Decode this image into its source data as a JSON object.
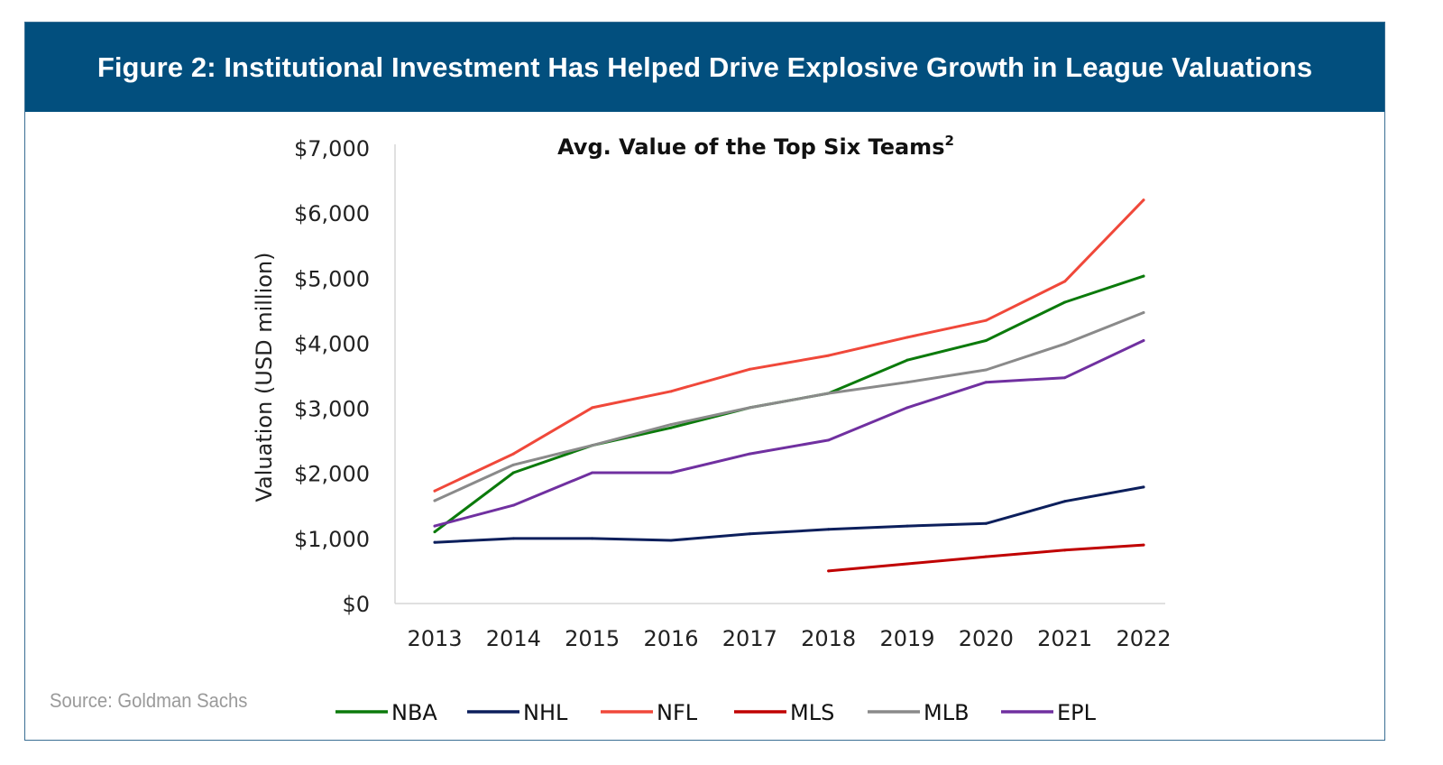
{
  "figure": {
    "banner_title": "Figure 2: Institutional Investment Has Helped Drive Explosive Growth in League Valuations",
    "source": "Source: Goldman Sachs"
  },
  "colors": {
    "banner_bg": "#024f7e",
    "NBA": "#0b7a0b",
    "NHL": "#0c1f5c",
    "NFL": "#f0483a",
    "MLS": "#c00000",
    "MLB": "#8a8a8a",
    "EPL": "#7030a0"
  },
  "chart_data": {
    "type": "line",
    "title": "Avg. Value of the Top Six Teams",
    "title_superscript": "2",
    "xlabel": "",
    "ylabel": "Valuation (USD million)",
    "x": [
      "2013",
      "2014",
      "2015",
      "2016",
      "2017",
      "2018",
      "2019",
      "2020",
      "2021",
      "2022"
    ],
    "x_tick_labels": [
      "2013",
      "2014",
      "2015",
      "2016",
      "2017",
      "2018",
      "2019",
      "2020",
      "2021",
      "2022"
    ],
    "ylim": [
      0,
      7000
    ],
    "y_ticks": [
      0,
      1000,
      2000,
      3000,
      4000,
      5000,
      6000,
      7000
    ],
    "y_tick_labels": [
      "$0",
      "$1,000",
      "$2,000",
      "$3,000",
      "$4,000",
      "$5,000",
      "$6,000",
      "$7,000"
    ],
    "grid": false,
    "legend_position": "bottom",
    "series": [
      {
        "name": "NBA",
        "values": [
          1100,
          2010,
          2430,
          2700,
          3010,
          3230,
          3740,
          4040,
          4630,
          5030
        ]
      },
      {
        "name": "NHL",
        "values": [
          940,
          1000,
          1000,
          970,
          1070,
          1140,
          1190,
          1230,
          1570,
          1790
        ]
      },
      {
        "name": "NFL",
        "values": [
          1730,
          2300,
          3010,
          3260,
          3600,
          3810,
          4090,
          4350,
          4950,
          6200
        ]
      },
      {
        "name": "MLS",
        "values": [
          null,
          null,
          null,
          null,
          null,
          500,
          610,
          720,
          820,
          900
        ]
      },
      {
        "name": "MLB",
        "values": [
          1580,
          2130,
          2430,
          2750,
          3010,
          3230,
          3400,
          3590,
          3990,
          4470
        ]
      },
      {
        "name": "EPL",
        "values": [
          1190,
          1510,
          2010,
          2010,
          2300,
          2510,
          3010,
          3400,
          3470,
          4040
        ]
      }
    ]
  }
}
